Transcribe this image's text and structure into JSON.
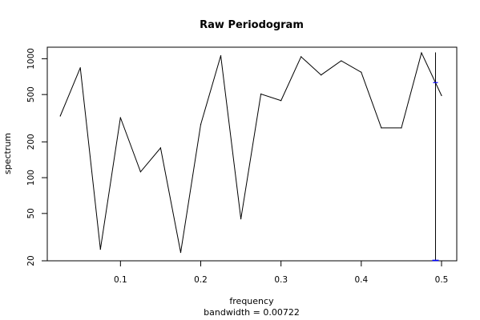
{
  "chart_data": {
    "type": "line",
    "title": "Raw Periodogram",
    "xlabel": "frequency",
    "ylabel": "spectrum",
    "subtitle": "bandwidth = 0.00722",
    "y_scale": "log",
    "xlim": [
      0.0208,
      0.5
    ],
    "ylim": [
      20,
      1250
    ],
    "x_ticks": [
      "0.1",
      "0.2",
      "0.3",
      "0.4",
      "0.5"
    ],
    "y_ticks": [
      "20",
      "50",
      "100",
      "200",
      "500",
      "1000"
    ],
    "x": [
      0.025,
      0.05,
      0.075,
      0.1,
      0.125,
      0.15,
      0.175,
      0.2,
      0.225,
      0.25,
      0.275,
      0.3,
      0.325,
      0.35,
      0.375,
      0.4,
      0.425,
      0.45,
      0.475,
      0.5
    ],
    "values": [
      330,
      840,
      25,
      320,
      112,
      178,
      23.5,
      280,
      1060,
      45,
      505,
      445,
      1040,
      730,
      960,
      770,
      262,
      262,
      1120,
      490
    ],
    "ci_bar": {
      "x": 0.4925,
      "top": 1130,
      "center": 630,
      "bottom": 20
    },
    "line_color": "#000000",
    "ci_color": "#0000ff"
  }
}
